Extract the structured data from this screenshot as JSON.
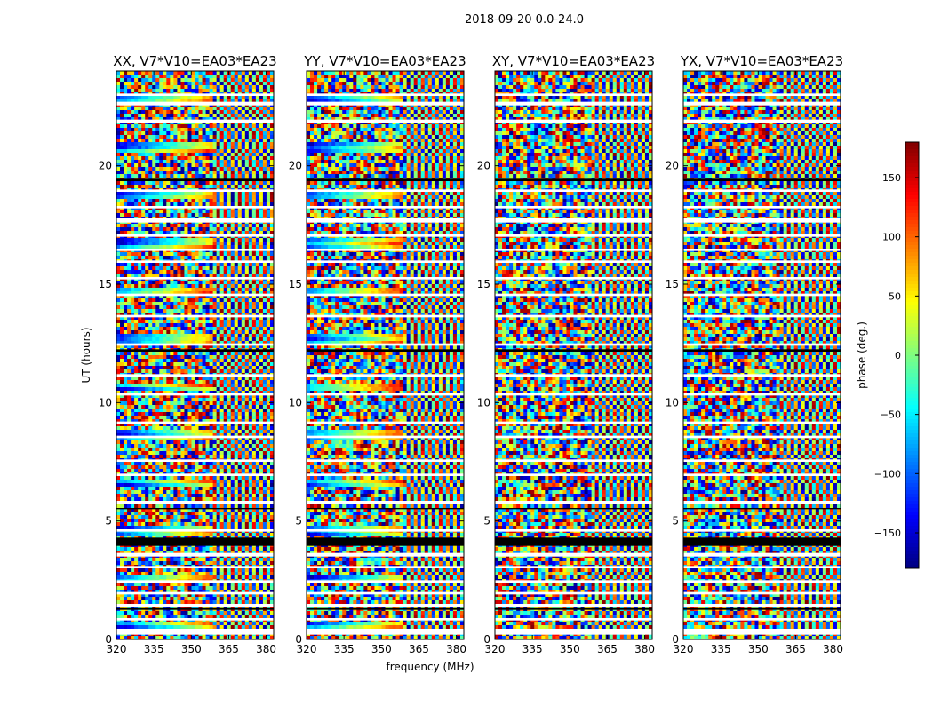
{
  "chart_data": {
    "type": "heatmap",
    "suptitle": "2018-09-20 0.0-24.0",
    "xlabel": "frequency (MHz)",
    "ylabel": "UT (hours)",
    "xlim": [
      320,
      383
    ],
    "ylim": [
      0,
      24
    ],
    "xticks": [
      320,
      335,
      350,
      365,
      380
    ],
    "yticks": [
      0,
      5,
      10,
      15,
      20
    ],
    "panels": [
      {
        "title": "XX, V7*V10=EA03*EA23",
        "pol": "XX"
      },
      {
        "title": "YY, V7*V10=EA03*EA23",
        "pol": "YY"
      },
      {
        "title": "XY, V7*V10=EA03*EA23",
        "pol": "XY"
      },
      {
        "title": "YX, V7*V10=EA03*EA23",
        "pol": "YX"
      }
    ],
    "colorbar": {
      "label": "phase (deg.)",
      "range": [
        -180,
        180
      ],
      "ticks": [
        -150,
        -100,
        -50,
        0,
        50,
        100,
        150
      ],
      "colormap": "jet",
      "extra_label": "....."
    },
    "flagged_ut_bands": [
      [
        0.2,
        0.45
      ],
      [
        0.8,
        0.9
      ],
      [
        1.35,
        1.5
      ],
      [
        1.9,
        2.0
      ],
      [
        2.4,
        2.5
      ],
      [
        3.0,
        3.1
      ],
      [
        3.5,
        3.65
      ],
      [
        4.55,
        4.65
      ],
      [
        5.7,
        5.85
      ],
      [
        6.9,
        7.0
      ],
      [
        7.5,
        7.6
      ],
      [
        8.5,
        8.6
      ],
      [
        9.1,
        9.2
      ],
      [
        10.3,
        10.4
      ],
      [
        11.1,
        11.2
      ],
      [
        12.4,
        12.5
      ],
      [
        13.6,
        13.7
      ],
      [
        14.5,
        14.6
      ],
      [
        15.2,
        15.3
      ],
      [
        15.9,
        16.0
      ],
      [
        16.4,
        16.5
      ],
      [
        17.0,
        17.1
      ],
      [
        17.6,
        17.8
      ],
      [
        18.2,
        18.3
      ],
      [
        18.9,
        19.0
      ],
      [
        21.8,
        21.95
      ],
      [
        22.55,
        22.7
      ],
      [
        22.95,
        23.05
      ]
    ],
    "black_ut_bands": [
      [
        3.95,
        4.3
      ],
      [
        1.25,
        1.32
      ],
      [
        12.15,
        12.25
      ],
      [
        19.35,
        19.45
      ],
      [
        5.5,
        5.55
      ]
    ]
  }
}
